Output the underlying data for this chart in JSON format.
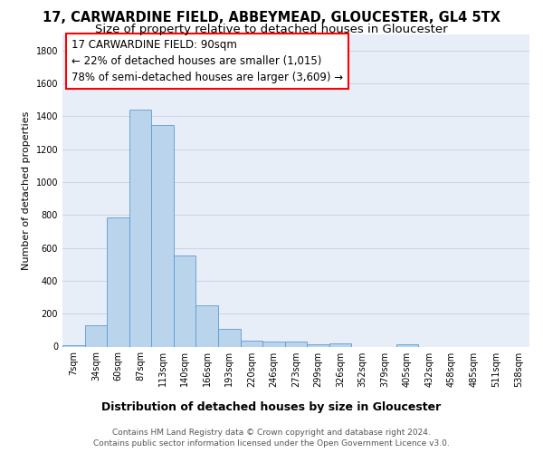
{
  "title1": "17, CARWARDINE FIELD, ABBEYMEAD, GLOUCESTER, GL4 5TX",
  "title2": "Size of property relative to detached houses in Gloucester",
  "xlabel": "Distribution of detached houses by size in Gloucester",
  "ylabel": "Number of detached properties",
  "footer1": "Contains HM Land Registry data © Crown copyright and database right 2024.",
  "footer2": "Contains public sector information licensed under the Open Government Licence v3.0.",
  "categories": [
    "7sqm",
    "34sqm",
    "60sqm",
    "87sqm",
    "113sqm",
    "140sqm",
    "166sqm",
    "193sqm",
    "220sqm",
    "246sqm",
    "273sqm",
    "299sqm",
    "326sqm",
    "352sqm",
    "379sqm",
    "405sqm",
    "432sqm",
    "458sqm",
    "485sqm",
    "511sqm",
    "538sqm"
  ],
  "values": [
    10,
    130,
    785,
    1440,
    1345,
    555,
    250,
    110,
    35,
    30,
    30,
    15,
    20,
    0,
    0,
    15,
    0,
    0,
    0,
    0,
    0
  ],
  "bar_color": "#bad4eb",
  "bar_edge_color": "#5b9bd5",
  "grid_color": "#c8d4e8",
  "bg_color": "#e8eef8",
  "property_label": "17 CARWARDINE FIELD: 90sqm",
  "annotation_line1": "← 22% of detached houses are smaller (1,015)",
  "annotation_line2": "78% of semi-detached houses are larger (3,609) →",
  "ylim": [
    0,
    1900
  ],
  "yticks": [
    0,
    200,
    400,
    600,
    800,
    1000,
    1200,
    1400,
    1600,
    1800
  ],
  "title1_fontsize": 10.5,
  "title2_fontsize": 9.5,
  "xlabel_fontsize": 9,
  "ylabel_fontsize": 8,
  "tick_fontsize": 7,
  "annotation_fontsize": 8.5,
  "footer_fontsize": 6.5
}
